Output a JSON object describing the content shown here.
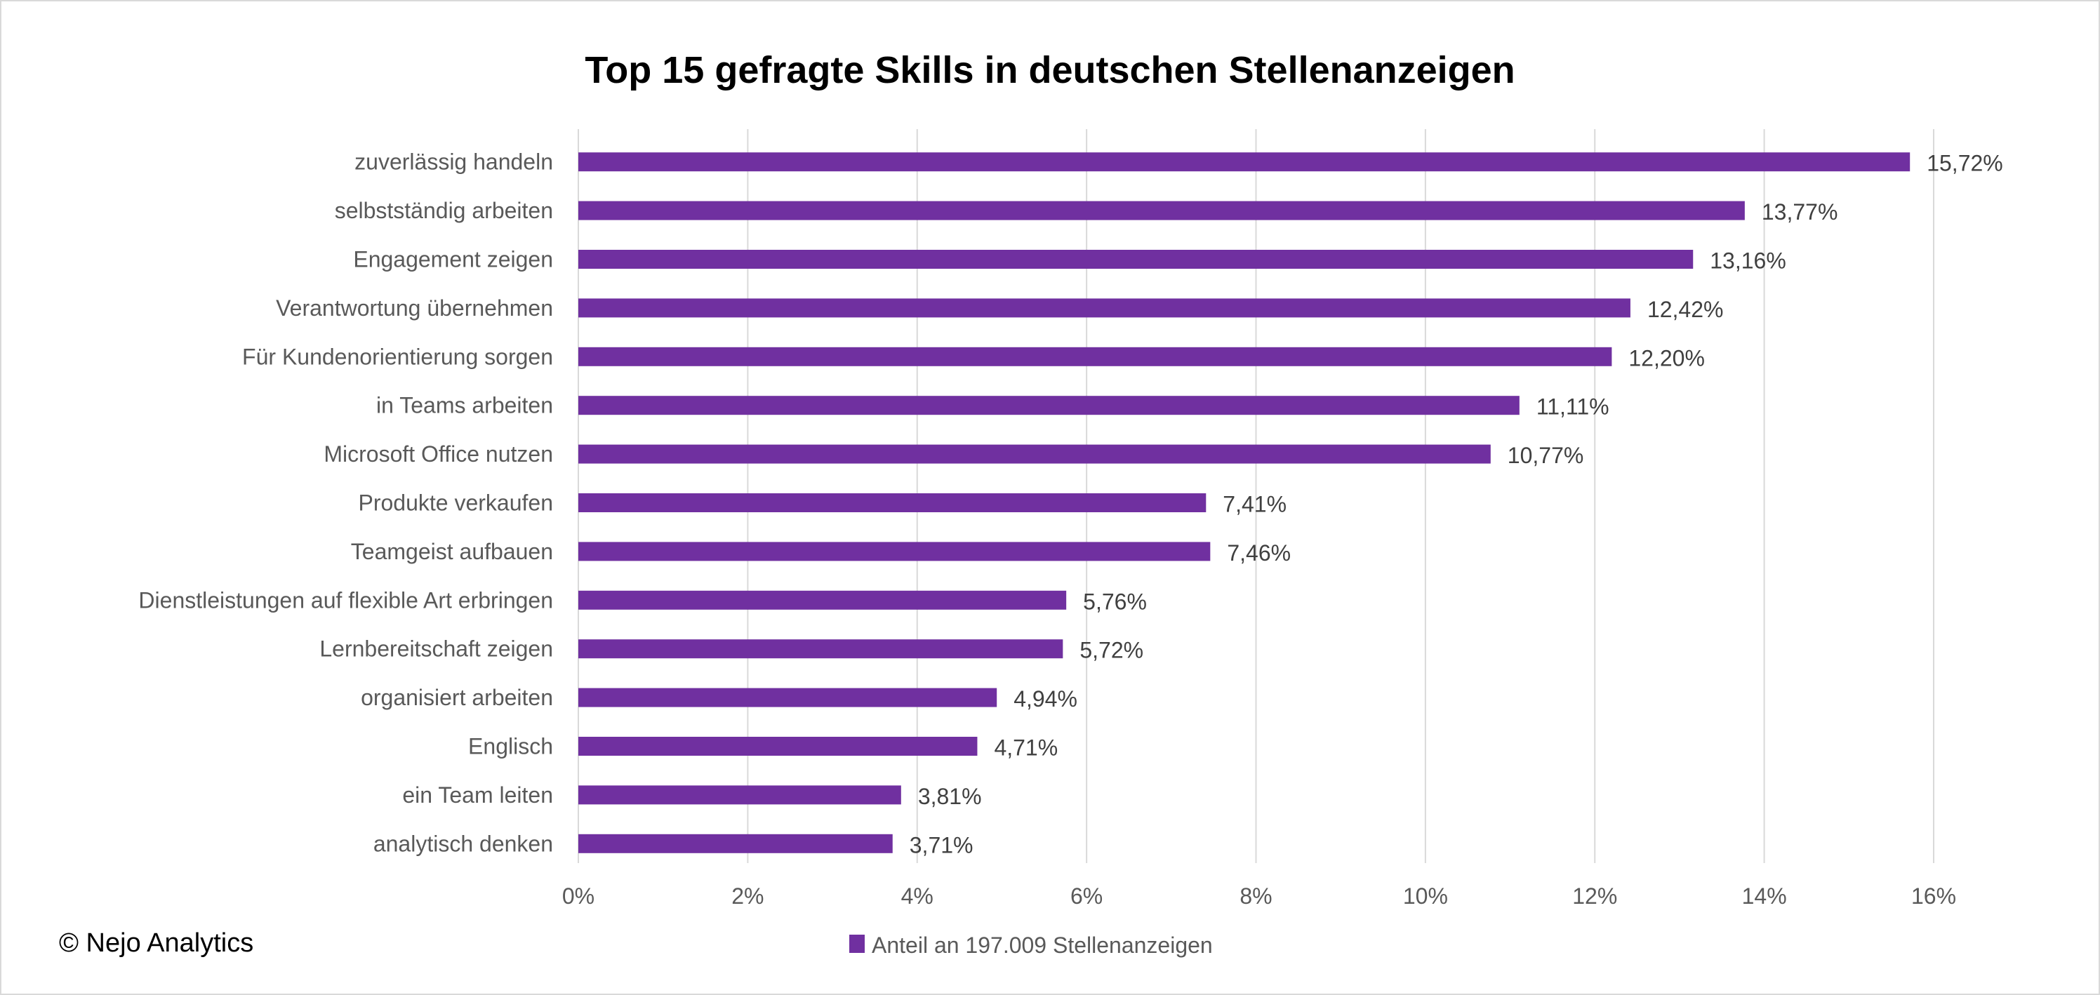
{
  "chart_data": {
    "type": "bar",
    "orientation": "horizontal",
    "title": "Top 15 gefragte Skills in deutschen Stellenanzeigen",
    "categories": [
      "zuverlässig handeln",
      "selbstständig arbeiten",
      "Engagement zeigen",
      "Verantwortung übernehmen",
      "Für Kundenorientierung sorgen",
      "in Teams arbeiten",
      "Microsoft Office nutzen",
      "Produkte verkaufen",
      "Teamgeist aufbauen",
      "Dienstleistungen auf flexible Art erbringen",
      "Lernbereitschaft zeigen",
      "organisiert arbeiten",
      "Englisch",
      "ein Team leiten",
      "analytisch denken"
    ],
    "series": [
      {
        "name": "Anteil an 197.009 Stellenanzeigen",
        "values": [
          15.72,
          13.77,
          13.16,
          12.42,
          12.2,
          11.11,
          10.77,
          7.41,
          7.46,
          5.76,
          5.72,
          4.94,
          4.71,
          3.81,
          3.71
        ],
        "data_labels": [
          "15,72%",
          "13,77%",
          "13,16%",
          "12,42%",
          "12,20%",
          "11,11%",
          "10,77%",
          "7,41%",
          "7,46%",
          "5,76%",
          "5,72%",
          "4,94%",
          "4,71%",
          "3,81%",
          "3,71%"
        ],
        "color": "#7030A0"
      }
    ],
    "xlim": [
      0,
      16
    ],
    "x_ticks": [
      "0%",
      "2%",
      "4%",
      "6%",
      "8%",
      "10%",
      "12%",
      "14%",
      "16%"
    ],
    "xlabel": "",
    "ylabel": "",
    "grid": "vertical",
    "legend": "bottom"
  },
  "footer": {
    "copyright": "© Nejo Analytics"
  }
}
